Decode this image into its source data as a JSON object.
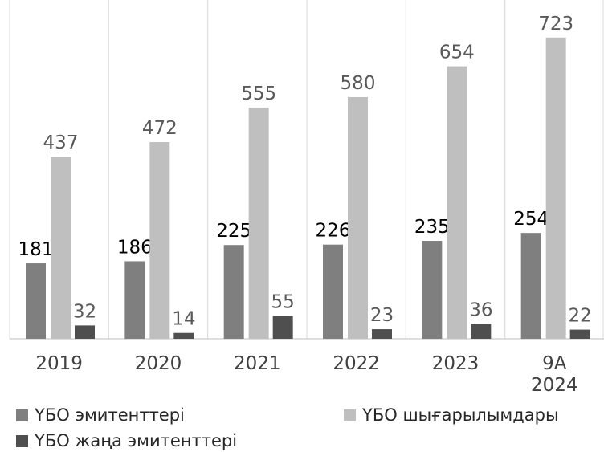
{
  "chart_data": {
    "type": "bar",
    "categories": [
      "2019",
      "2020",
      "2021",
      "2022",
      "2023",
      "9А 2024"
    ],
    "series": [
      {
        "name": "ҮБО эмитенттері",
        "color": "#7f7f7f",
        "values": [
          181,
          186,
          225,
          226,
          235,
          254
        ]
      },
      {
        "name": "ҮБО шығарылымдары",
        "color": "#bfbfbf",
        "values": [
          437,
          472,
          555,
          580,
          654,
          723
        ]
      },
      {
        "name": "ҮБО жаңа эмитенттері",
        "color": "#4f4f4f",
        "values": [
          32,
          14,
          55,
          23,
          36,
          22
        ]
      }
    ],
    "grid": true
  }
}
